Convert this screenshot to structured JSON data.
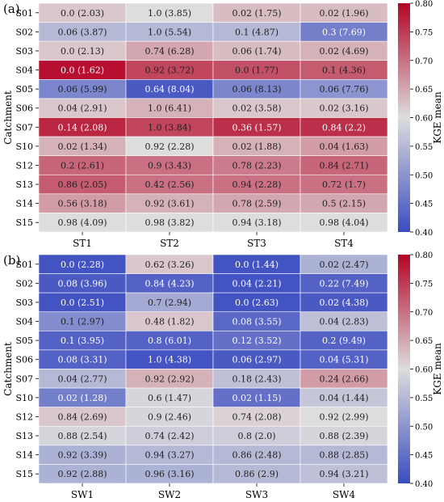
{
  "chart_data": [
    {
      "type": "heatmap",
      "panel_label": "(a)",
      "ylabel": "Catchment",
      "colorbar_label": "KGE mean",
      "colorbar_range": [
        0.4,
        0.8
      ],
      "colorbar_ticks": [
        0.4,
        0.45,
        0.5,
        0.55,
        0.6,
        0.65,
        0.7,
        0.75,
        0.8
      ],
      "colormap": "coolwarm",
      "colors": {
        "low": "#3b4cc0",
        "mid": "#dddddd",
        "high": "#b40426"
      },
      "columns": [
        "ST1",
        "ST2",
        "ST3",
        "ST4"
      ],
      "rows": [
        "S01",
        "S02",
        "S03",
        "S04",
        "S05",
        "S06",
        "S07",
        "S10",
        "S12",
        "S13",
        "S14",
        "S15"
      ],
      "cell_labels": [
        [
          "0.0 (2.03)",
          "1.0 (3.85)",
          "0.02 (1.75)",
          "0.02 (1.96)"
        ],
        [
          "0.06 (3.87)",
          "1.0 (5.54)",
          "0.1 (4.87)",
          "0.3 (7.69)"
        ],
        [
          "0.0 (2.13)",
          "0.74 (6.28)",
          "0.06 (1.74)",
          "0.02 (4.69)"
        ],
        [
          "0.0 (1.62)",
          "0.92 (3.72)",
          "0.0 (1.77)",
          "0.1 (4.36)"
        ],
        [
          "0.06 (5.99)",
          "0.64 (8.04)",
          "0.06 (8.13)",
          "0.06 (7.76)"
        ],
        [
          "0.04 (2.91)",
          "1.0 (6.41)",
          "0.02 (3.58)",
          "0.02 (3.16)"
        ],
        [
          "0.14 (2.08)",
          "1.0 (3.84)",
          "0.36 (1.57)",
          "0.84 (2.2)"
        ],
        [
          "0.02 (1.34)",
          "0.92 (2.28)",
          "0.02 (1.88)",
          "0.04 (1.63)"
        ],
        [
          "0.2 (2.61)",
          "0.9 (3.43)",
          "0.78 (2.23)",
          "0.84 (2.71)"
        ],
        [
          "0.86 (2.05)",
          "0.42 (2.56)",
          "0.94 (2.28)",
          "0.72 (1.7)"
        ],
        [
          "0.56 (3.18)",
          "0.92 (3.61)",
          "0.78 (2.59)",
          "0.5 (2.15)"
        ],
        [
          "0.98 (4.09)",
          "0.98 (3.82)",
          "0.94 (3.18)",
          "0.98 (4.04)"
        ]
      ],
      "values": [
        [
          0.62,
          0.6,
          0.63,
          0.63
        ],
        [
          0.55,
          0.55,
          0.55,
          0.47
        ],
        [
          0.62,
          0.65,
          0.63,
          0.64
        ],
        [
          0.79,
          0.74,
          0.73,
          0.72
        ],
        [
          0.48,
          0.42,
          0.48,
          0.5
        ],
        [
          0.62,
          0.64,
          0.62,
          0.62
        ],
        [
          0.77,
          0.74,
          0.76,
          0.76
        ],
        [
          0.64,
          0.6,
          0.64,
          0.66
        ],
        [
          0.71,
          0.7,
          0.69,
          0.71
        ],
        [
          0.72,
          0.7,
          0.7,
          0.7
        ],
        [
          0.66,
          0.64,
          0.65,
          0.65
        ],
        [
          0.6,
          0.6,
          0.6,
          0.6
        ]
      ]
    },
    {
      "type": "heatmap",
      "panel_label": "(b)",
      "ylabel": "Catchment",
      "colorbar_label": "KGE mean",
      "colorbar_range": [
        0.4,
        0.8
      ],
      "colorbar_ticks": [
        0.4,
        0.45,
        0.5,
        0.55,
        0.6,
        0.65,
        0.7,
        0.75,
        0.8
      ],
      "colormap": "coolwarm",
      "colors": {
        "low": "#3b4cc0",
        "mid": "#dddddd",
        "high": "#b40426"
      },
      "columns": [
        "SW1",
        "SW2",
        "SW3",
        "SW4"
      ],
      "rows": [
        "S01",
        "S02",
        "S03",
        "S04",
        "S05",
        "S06",
        "S07",
        "S10",
        "S12",
        "S13",
        "S14",
        "S15"
      ],
      "cell_labels": [
        [
          "0.0 (2.28)",
          "0.62 (3.26)",
          "0.0 (1.44)",
          "0.02 (2.47)"
        ],
        [
          "0.08 (3.96)",
          "0.84 (4.23)",
          "0.04 (2.21)",
          "0.22 (7.49)"
        ],
        [
          "0.0 (2.51)",
          "0.7 (2.94)",
          "0.0 (2.63)",
          "0.02 (4.38)"
        ],
        [
          "0.1 (2.97)",
          "0.48 (1.82)",
          "0.08 (3.55)",
          "0.04 (2.83)"
        ],
        [
          "0.1 (3.95)",
          "0.8 (6.01)",
          "0.12 (3.52)",
          "0.2 (9.49)"
        ],
        [
          "0.08 (3.31)",
          "1.0 (4.38)",
          "0.06 (2.97)",
          "0.04 (5.31)"
        ],
        [
          "0.04 (2.77)",
          "0.92 (2.92)",
          "0.18 (2.43)",
          "0.24 (2.66)"
        ],
        [
          "0.02 (1.28)",
          "0.6 (1.47)",
          "0.02 (1.15)",
          "0.04 (1.44)"
        ],
        [
          "0.84 (2.69)",
          "0.9 (2.46)",
          "0.74 (2.08)",
          "0.92 (2.99)"
        ],
        [
          "0.88 (2.54)",
          "0.74 (2.42)",
          "0.8 (2.0)",
          "0.88 (2.39)"
        ],
        [
          "0.92 (3.39)",
          "0.94 (3.27)",
          "0.86 (2.48)",
          "0.88 (2.85)"
        ],
        [
          "0.92 (2.88)",
          "0.96 (3.16)",
          "0.86 (2.9)",
          "0.94 (3.21)"
        ]
      ],
      "values": [
        [
          0.41,
          0.62,
          0.41,
          0.54
        ],
        [
          0.42,
          0.43,
          0.41,
          0.43
        ],
        [
          0.41,
          0.53,
          0.41,
          0.42
        ],
        [
          0.49,
          0.62,
          0.44,
          0.56
        ],
        [
          0.43,
          0.43,
          0.45,
          0.43
        ],
        [
          0.43,
          0.41,
          0.42,
          0.43
        ],
        [
          0.55,
          0.64,
          0.56,
          0.66
        ],
        [
          0.47,
          0.59,
          0.45,
          0.57
        ],
        [
          0.62,
          0.59,
          0.61,
          0.6
        ],
        [
          0.59,
          0.58,
          0.58,
          0.59
        ],
        [
          0.54,
          0.55,
          0.55,
          0.55
        ],
        [
          0.54,
          0.54,
          0.55,
          0.56
        ]
      ]
    }
  ]
}
